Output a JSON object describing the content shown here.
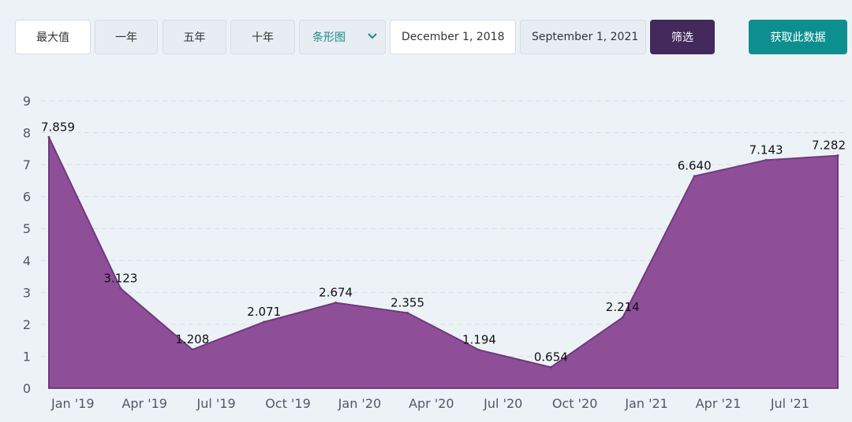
{
  "toolbar": {
    "max_label": "最大值",
    "one_year_label": "一年",
    "five_year_label": "五年",
    "ten_year_label": "十年",
    "chart_type_label": "条形图",
    "start_date": "December 1, 2018",
    "end_date": "September 1, 2021",
    "filter_label": "筛选",
    "fetch_label": "获取此数据"
  },
  "colors": {
    "area_fill": "#8e4f98",
    "area_stroke": "#6e3a7c",
    "filter_button": "#43295c",
    "fetch_button": "#0e8f8f",
    "accent_text": "#1a8a8a"
  },
  "chart_data": {
    "type": "area",
    "x_ticks": [
      "Jan '19",
      "Apr '19",
      "Jul '19",
      "Oct '19",
      "Jan '20",
      "Apr '20",
      "Jul '20",
      "Oct '20",
      "Jan '21",
      "Apr '21",
      "Jul '21"
    ],
    "points": [
      {
        "x": "2018-12",
        "y": 7.859
      },
      {
        "x": "2019-03",
        "y": 3.123
      },
      {
        "x": "2019-06",
        "y": 1.208
      },
      {
        "x": "2019-09",
        "y": 2.071
      },
      {
        "x": "2019-12",
        "y": 2.674
      },
      {
        "x": "2020-03",
        "y": 2.355
      },
      {
        "x": "2020-06",
        "y": 1.194
      },
      {
        "x": "2020-09",
        "y": 0.654
      },
      {
        "x": "2020-12",
        "y": 2.214
      },
      {
        "x": "2021-03",
        "y": 6.64
      },
      {
        "x": "2021-06",
        "y": 7.143
      },
      {
        "x": "2021-09",
        "y": 7.282
      }
    ],
    "data_labels": [
      "7.859",
      "3.123",
      "1.208",
      "2.071",
      "2.674",
      "2.355",
      "1.194",
      "0.654",
      "2.214",
      "6.640",
      "7.143",
      "7.282"
    ],
    "y_ticks": [
      "0",
      "1",
      "2",
      "3",
      "4",
      "5",
      "6",
      "7",
      "8",
      "9"
    ],
    "ylim": [
      0,
      9
    ],
    "grid": "horizontal dashed",
    "legend": "none"
  }
}
